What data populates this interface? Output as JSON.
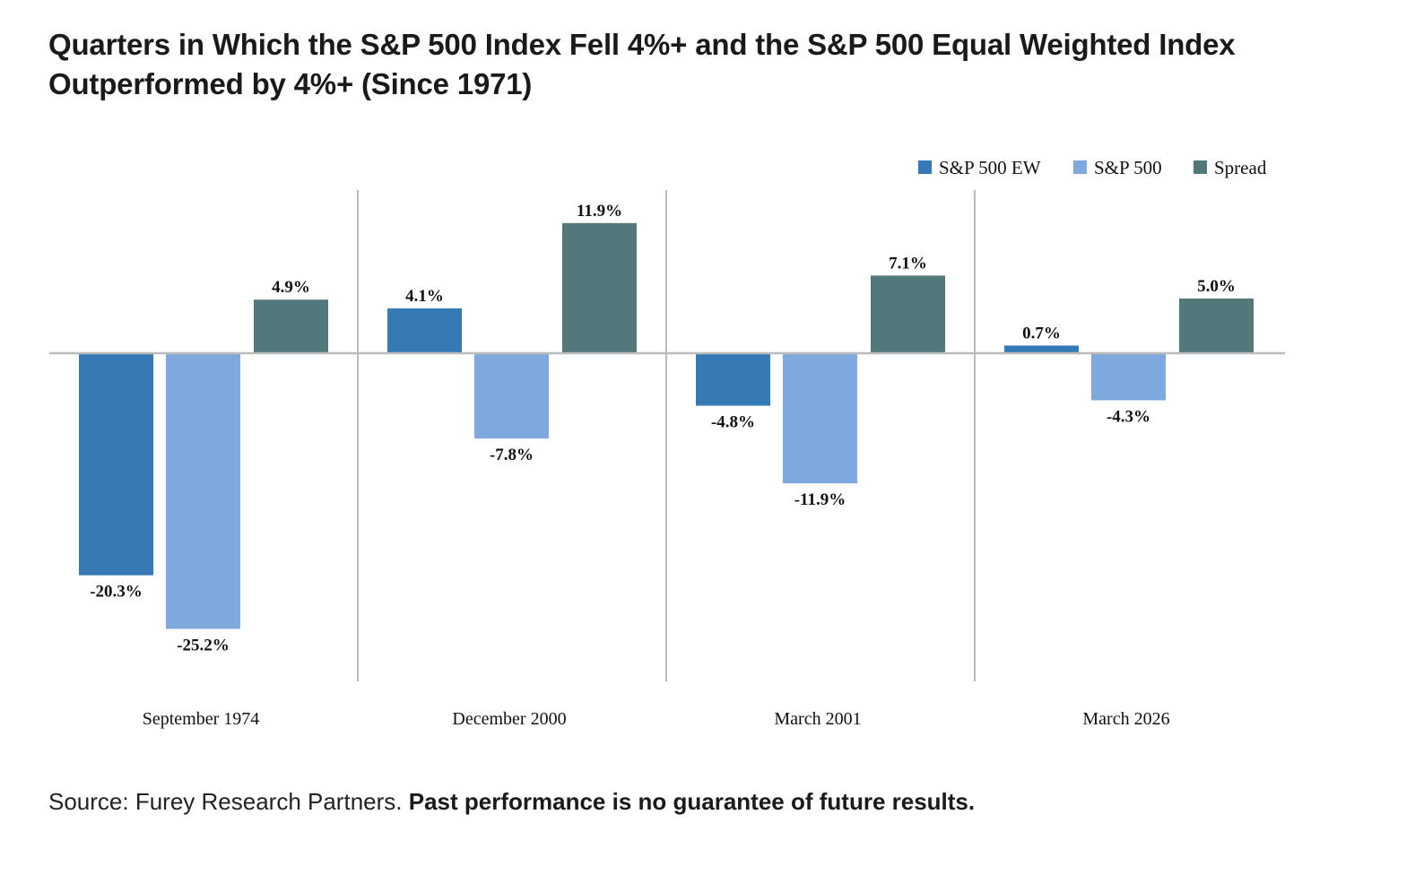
{
  "title": "Quarters in Which the S&P 500 Index Fell 4%+ and the S&P 500 Equal Weighted Index Outperformed by 4%+ (Since 1971)",
  "footer": {
    "source": "Source: Furey Research Partners.",
    "disclaimer": "Past performance is no guarantee of future results."
  },
  "colors": {
    "sp500_ew": "#3579b5",
    "sp500": "#7ea9de",
    "spread": "#527879",
    "axis": "#bbbbbb"
  },
  "chart_data": {
    "type": "bar",
    "title": "Quarters in Which the S&P 500 Index Fell 4%+ and the S&P 500 Equal Weighted Index Outperformed by 4%+ (Since 1971)",
    "categories": [
      "September 1974",
      "December 2000",
      "March 2001",
      "March 2026"
    ],
    "series": [
      {
        "name": "S&P 500 EW",
        "values": [
          -20.3,
          4.1,
          -4.8,
          0.7
        ],
        "labels": [
          "-20.3%",
          "4.1%",
          "-4.8%",
          "0.7%"
        ],
        "color": "#3579b5"
      },
      {
        "name": "S&P 500",
        "values": [
          -25.2,
          -7.8,
          -11.9,
          -4.3
        ],
        "labels": [
          "-25.2%",
          "-7.8%",
          "-11.9%",
          "-4.3%"
        ],
        "color": "#7ea9de"
      },
      {
        "name": "Spread",
        "values": [
          4.9,
          11.9,
          7.1,
          5.0
        ],
        "labels": [
          "4.9%",
          "11.9%",
          "7.1%",
          "5.0%"
        ],
        "color": "#527879"
      }
    ],
    "ylim": [
      -30,
      15
    ],
    "legend_position": "top-right",
    "grid": false
  }
}
